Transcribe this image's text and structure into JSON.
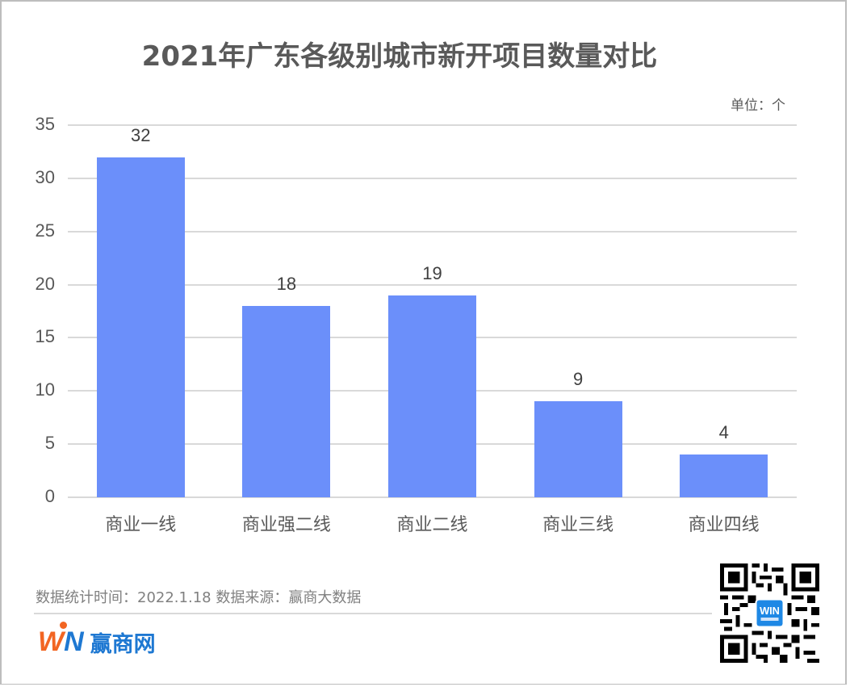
{
  "title": "2021年广东各级别城市新开项目数量对比",
  "unit_label": "单位：个",
  "footnote": "数据统计时间：2022.1.18  数据来源：赢商大数据",
  "brand": {
    "logo_letters_w": "W",
    "logo_letters_n": "N",
    "name": "赢商网",
    "colors": {
      "orange": "#f26522",
      "blue": "#1e78d2"
    }
  },
  "qr_code": {
    "center_badge": "WIN 赢商网"
  },
  "colors": {
    "bar": "#6b8ffa",
    "grid": "#d9d9d9",
    "text": "#595959"
  },
  "y_ticks": [
    "0",
    "5",
    "10",
    "15",
    "20",
    "25",
    "30",
    "35"
  ],
  "chart_data": {
    "type": "bar",
    "title": "2021年广东各级别城市新开项目数量对比",
    "subtitle": "单位：个",
    "categories": [
      "商业一线",
      "商业强二线",
      "商业二线",
      "商业三线",
      "商业四线"
    ],
    "values": [
      32,
      18,
      19,
      9,
      4
    ],
    "xlabel": "",
    "ylabel": "",
    "ylim": [
      0,
      35
    ],
    "yticks": [
      0,
      5,
      10,
      15,
      20,
      25,
      30,
      35
    ],
    "grid": true,
    "legend": null,
    "data_labels": true,
    "bar_color": "#6b8ffa"
  }
}
